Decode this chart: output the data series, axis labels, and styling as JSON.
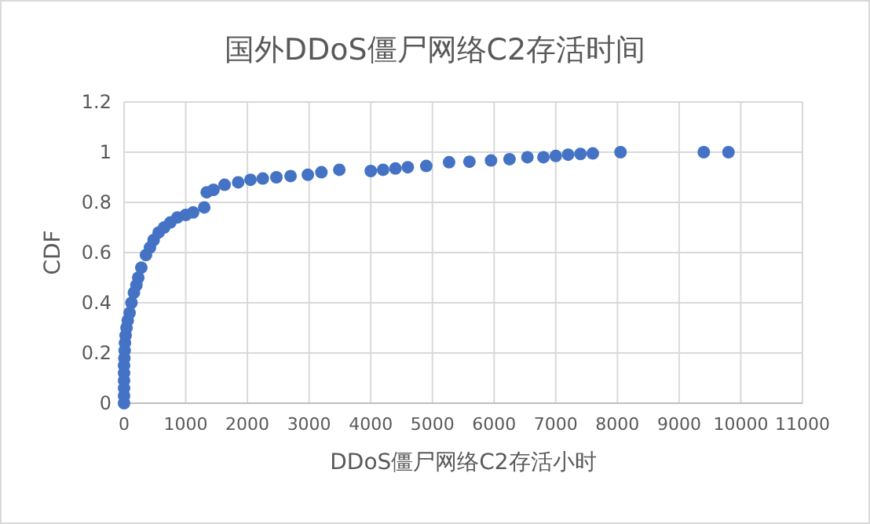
{
  "chart_data": {
    "type": "scatter",
    "title": "国外DDoS僵尸网络C2存活时间",
    "xlabel": "DDoS僵尸网络C2存活小时",
    "ylabel": "CDF",
    "x": [
      0,
      0,
      0,
      0,
      0,
      0,
      5,
      10,
      15,
      25,
      40,
      60,
      90,
      120,
      160,
      200,
      230,
      280,
      355,
      420,
      480,
      560,
      650,
      750,
      865,
      1000,
      1120,
      1300,
      1340,
      1450,
      1630,
      1850,
      2050,
      2250,
      2470,
      2700,
      2980,
      3200,
      3490,
      4000,
      4200,
      4400,
      4600,
      4900,
      5270,
      5600,
      5950,
      6250,
      6540,
      6800,
      7000,
      7200,
      7400,
      7600,
      8050,
      9400,
      9800
    ],
    "values": [
      0,
      0.03,
      0.06,
      0.09,
      0.12,
      0.15,
      0.18,
      0.21,
      0.24,
      0.27,
      0.3,
      0.33,
      0.36,
      0.4,
      0.44,
      0.47,
      0.5,
      0.54,
      0.59,
      0.62,
      0.65,
      0.68,
      0.7,
      0.72,
      0.74,
      0.75,
      0.76,
      0.78,
      0.84,
      0.85,
      0.87,
      0.88,
      0.89,
      0.895,
      0.9,
      0.905,
      0.91,
      0.92,
      0.93,
      0.925,
      0.93,
      0.935,
      0.94,
      0.945,
      0.96,
      0.962,
      0.967,
      0.972,
      0.98,
      0.98,
      0.985,
      0.99,
      0.993,
      0.995,
      1,
      1,
      1
    ],
    "color": "#4472c4",
    "marker": "circle",
    "grid": true,
    "xlim": [
      0,
      11000
    ],
    "xticks": [
      0,
      1000,
      2000,
      3000,
      4000,
      5000,
      6000,
      7000,
      8000,
      9000,
      10000,
      11000
    ],
    "ylim": [
      0,
      1.2
    ],
    "yticks": [
      0,
      0.2,
      0.4,
      0.6,
      0.8,
      1,
      1.2
    ]
  }
}
